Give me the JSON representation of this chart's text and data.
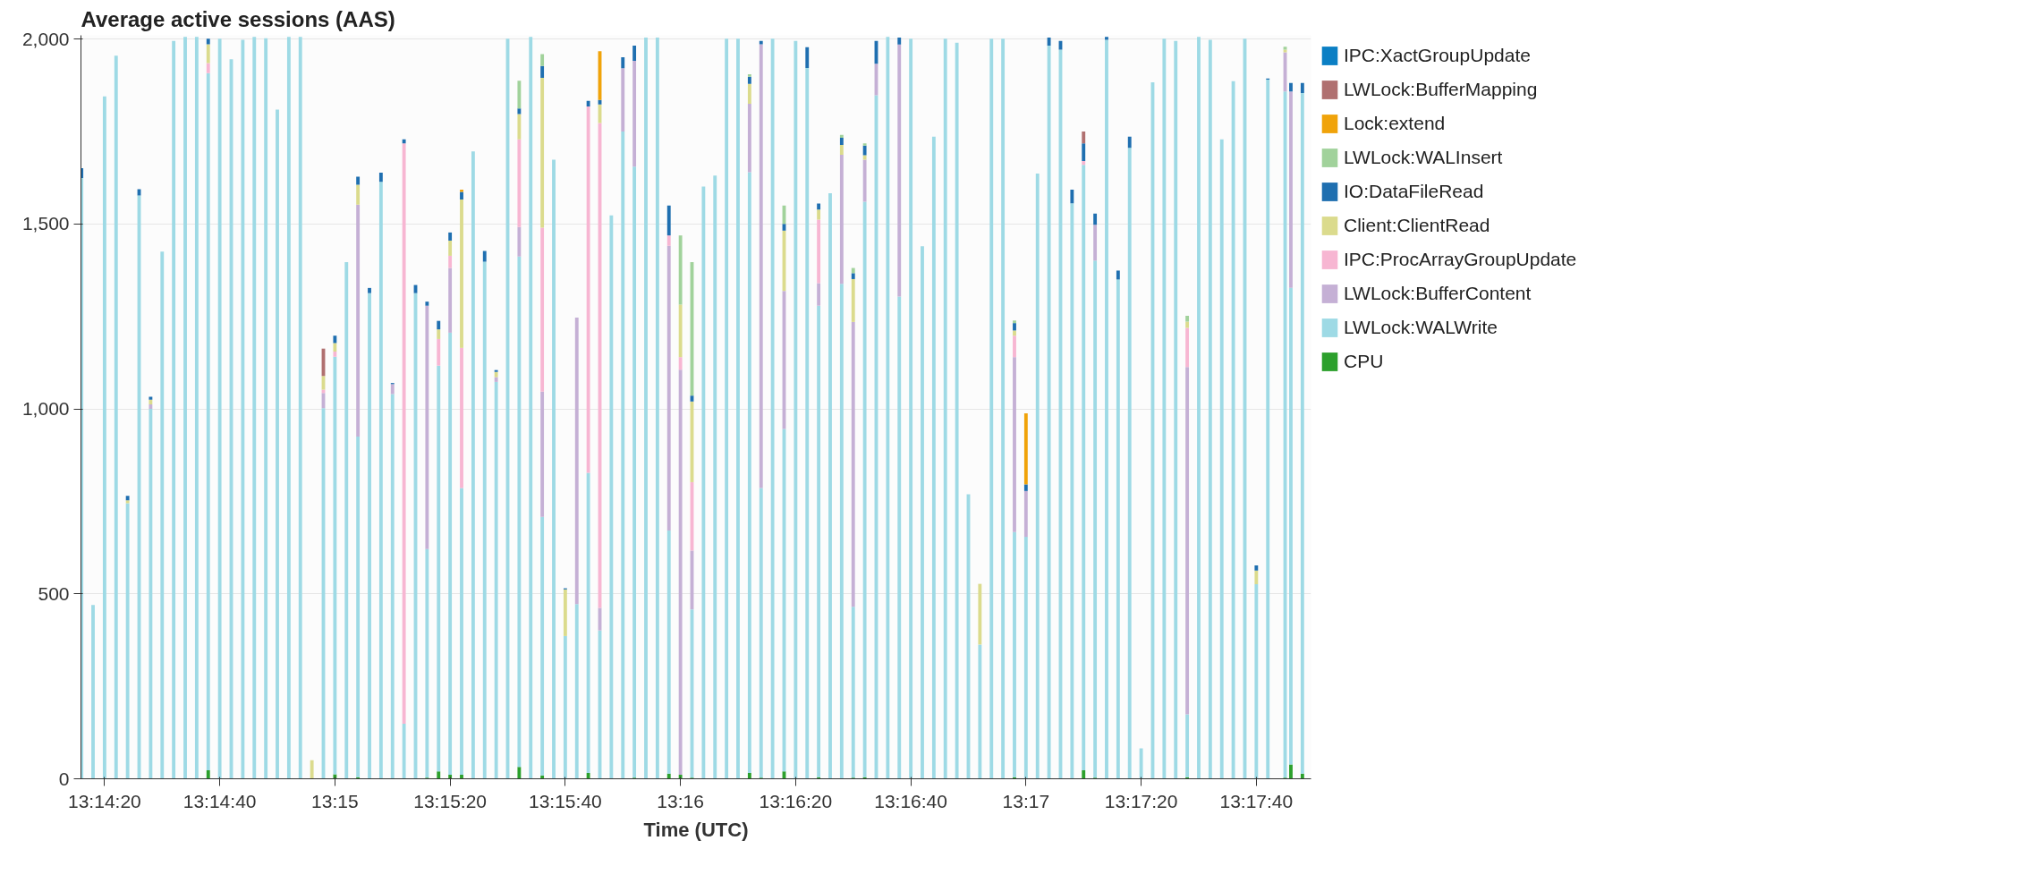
{
  "chart_data": {
    "type": "bar",
    "stacked": true,
    "title": "Average active sessions (AAS)",
    "xlabel": "Time (UTC)",
    "x": [
      13.237778,
      13.238333,
      13.238889,
      13.239444,
      13.24,
      13.240556,
      13.241111,
      13.241667,
      13.242222,
      13.242778,
      13.243333,
      13.243889,
      13.244444,
      13.245,
      13.245556,
      13.246111,
      13.246667,
      13.247222,
      13.247778,
      13.248333,
      13.248889,
      13.249444,
      13.25,
      13.250556,
      13.251111,
      13.251667,
      13.252222,
      13.252778,
      13.253333,
      13.253889,
      13.254444,
      13.255,
      13.255556,
      13.256111,
      13.256667,
      13.257222,
      13.257778,
      13.258333,
      13.258889,
      13.259444,
      13.26,
      13.260556,
      13.261111,
      13.261667,
      13.262222,
      13.262778,
      13.263333,
      13.263889,
      13.264444,
      13.265,
      13.265556,
      13.266111,
      13.266667,
      13.267222,
      13.267778,
      13.268333,
      13.268889,
      13.269444,
      13.27,
      13.270556,
      13.271111,
      13.271667,
      13.272222,
      13.272778,
      13.273333,
      13.273889,
      13.274444,
      13.275,
      13.275556,
      13.276111,
      13.276667,
      13.277222,
      13.277778,
      13.278333,
      13.278889,
      13.279444,
      13.28,
      13.280556,
      13.281111,
      13.281667,
      13.282222,
      13.282778,
      13.283333,
      13.283889,
      13.284444,
      13.285,
      13.285556,
      13.286111,
      13.286667,
      13.287222,
      13.287778,
      13.288333,
      13.288889,
      13.289444,
      13.29,
      13.290556,
      13.291111,
      13.291667,
      13.292222,
      13.292778,
      13.293333,
      13.293889,
      13.294444,
      13.295,
      13.295833,
      13.296111,
      13.296667
    ],
    "xlim": [
      13.23775,
      13.297083
    ],
    "xticks": [
      {
        "value": 13.238889,
        "label": "13:14:20"
      },
      {
        "value": 13.244444,
        "label": "13:14:40"
      },
      {
        "value": 13.25,
        "label": "13:15"
      },
      {
        "value": 13.255556,
        "label": "13:15:20"
      },
      {
        "value": 13.261111,
        "label": "13:15:40"
      },
      {
        "value": 13.266667,
        "label": "13:16"
      },
      {
        "value": 13.272222,
        "label": "13:16:20"
      },
      {
        "value": 13.277778,
        "label": "13:16:40"
      },
      {
        "value": 13.283333,
        "label": "13:17"
      },
      {
        "value": 13.288889,
        "label": "13:17:20"
      },
      {
        "value": 13.294444,
        "label": "13:17:40"
      }
    ],
    "ylim": [
      0,
      2010
    ],
    "yticks": [
      0,
      500,
      {
        "value": 1000,
        "label": "1,000"
      },
      {
        "value": 1500,
        "label": "1,500"
      },
      {
        "value": 2000,
        "label": "2,000"
      }
    ],
    "grid": "y",
    "legend": "right",
    "series": [
      {
        "name": "CPU",
        "color": "#2ca02c",
        "values": [
          0,
          0,
          0,
          0,
          0,
          0,
          0,
          0,
          0,
          0,
          0,
          23,
          0,
          0,
          0,
          0,
          0,
          0,
          0,
          0,
          0,
          null,
          12,
          0,
          4,
          0,
          0,
          0,
          0,
          0,
          3,
          20,
          11,
          11,
          0,
          0,
          0,
          0,
          32,
          0,
          9,
          0,
          0,
          0,
          16,
          null,
          0,
          0,
          3,
          0,
          0,
          14,
          11,
          3,
          0,
          0,
          0,
          0,
          16,
          3,
          0,
          20,
          0,
          0,
          4,
          0,
          0,
          3,
          4,
          0,
          0,
          0,
          0,
          0,
          0,
          0,
          0,
          0,
          0,
          0,
          0,
          4,
          null,
          0,
          0,
          0,
          0,
          23,
          3,
          0,
          0,
          0,
          0,
          0,
          0,
          0,
          4,
          0,
          0,
          0,
          0,
          0,
          0,
          0,
          3,
          39,
          14
        ]
      },
      {
        "name": "LWLock:WALWrite",
        "color": "#9edae5",
        "values": [
          1624,
          470,
          1845,
          1955,
          745,
          1577,
          1000,
          1425,
          1995,
          2006,
          2006,
          1885,
          2001,
          1945,
          1998,
          2006,
          2002,
          1809,
          2006,
          2006,
          0,
          1002,
          1129,
          1397,
          921,
          1313,
          1614,
          1040,
          149,
          1313,
          618,
          1097,
          1195,
          775,
          1696,
          1398,
          1073,
          2001,
          1380,
          2006,
          699,
          1674,
          386,
          472,
          811,
          401,
          1523,
          1750,
          1652,
          2004,
          2004,
          657,
          0,
          455,
          1601,
          1631,
          2001,
          2001,
          1624,
          783,
          2001,
          926,
          1995,
          1922,
          1275,
          1583,
          1338,
          462,
          1556,
          1848,
          2006,
          1304,
          2001,
          1440,
          1736,
          2001,
          1990,
          769,
          363,
          2001,
          2001,
          663,
          654,
          1636,
          1982,
          1971,
          1556,
          1637,
          1398,
          1998,
          1350,
          1706,
          82,
          1883,
          2001,
          1995,
          170,
          2006,
          1998,
          1729,
          1886,
          2001,
          526,
          1890,
          1855,
          1288,
          1840
        ]
      },
      {
        "name": "LWLock:BufferContent",
        "color": "#c5b0d5",
        "values": [
          0,
          0,
          0,
          0,
          0,
          0,
          12,
          0,
          0,
          0,
          0,
          0,
          0,
          0,
          0,
          0,
          0,
          0,
          0,
          0,
          0,
          41,
          0,
          0,
          627,
          0,
          0,
          27,
          0,
          0,
          658,
          0,
          175,
          0,
          0,
          0,
          13,
          0,
          80,
          0,
          339,
          0,
          0,
          775,
          0,
          61,
          0,
          171,
          286,
          0,
          0,
          770,
          1095,
          159,
          0,
          0,
          0,
          0,
          185,
          1200,
          0,
          373,
          0,
          0,
          61,
          0,
          349,
          770,
          114,
          85,
          0,
          681,
          0,
          0,
          0,
          0,
          0,
          0,
          0,
          0,
          0,
          473,
          124,
          0,
          0,
          0,
          0,
          0,
          97,
          0,
          0,
          0,
          0,
          0,
          0,
          0,
          939,
          0,
          0,
          0,
          0,
          0,
          0,
          0,
          106,
          531,
          0
        ]
      },
      {
        "name": "IPC:ProcArrayGroupUpdate",
        "color": "#f7b6d2",
        "values": [
          0,
          0,
          0,
          0,
          0,
          0,
          0,
          0,
          0,
          0,
          0,
          27,
          0,
          0,
          0,
          0,
          0,
          0,
          0,
          0,
          0,
          9,
          14,
          0,
          0,
          0,
          0,
          0,
          1569,
          0,
          0,
          72,
          33,
          379,
          0,
          0,
          0,
          0,
          237,
          0,
          443,
          0,
          0,
          0,
          991,
          1311,
          0,
          0,
          0,
          0,
          0,
          28,
          34,
          185,
          0,
          0,
          0,
          0,
          0,
          0,
          0,
          0,
          0,
          0,
          172,
          0,
          0,
          0,
          0,
          0,
          0,
          0,
          0,
          0,
          0,
          0,
          0,
          0,
          0,
          0,
          0,
          58,
          0,
          0,
          0,
          0,
          0,
          10,
          0,
          0,
          0,
          0,
          0,
          0,
          0,
          0,
          106,
          0,
          0,
          0,
          0,
          0,
          0,
          0,
          0,
          0,
          0
        ]
      },
      {
        "name": "Client:ClientRead",
        "color": "#dbdb8d",
        "values": [
          0,
          0,
          0,
          0,
          8,
          0,
          13,
          0,
          0,
          0,
          0,
          51,
          0,
          0,
          0,
          0,
          0,
          0,
          0,
          0,
          50,
          37,
          23,
          0,
          54,
          0,
          0,
          0,
          0,
          0,
          0,
          26,
          41,
          401,
          0,
          0,
          14,
          0,
          68,
          0,
          405,
          0,
          126,
          0,
          0,
          50,
          0,
          0,
          0,
          0,
          0,
          0,
          142,
          218,
          0,
          0,
          0,
          0,
          54,
          0,
          0,
          163,
          0,
          0,
          27,
          0,
          27,
          116,
          12,
          null,
          0,
          0,
          0,
          0,
          0,
          0,
          0,
          0,
          164,
          0,
          0,
          14,
          0,
          0,
          0,
          0,
          0,
          0,
          0,
          0,
          0,
          0,
          0,
          0,
          0,
          0,
          17,
          0,
          0,
          0,
          0,
          0,
          37,
          0,
          7,
          0,
          0
        ]
      },
      {
        "name": "IO:DataFileRead",
        "color": "#1f6fb0",
        "values": [
          27,
          0,
          0,
          0,
          12,
          17,
          8,
          0,
          0,
          0,
          0,
          15,
          0,
          0,
          0,
          0,
          0,
          0,
          0,
          0,
          0,
          0,
          20,
          0,
          22,
          14,
          25,
          3,
          11,
          22,
          11,
          23,
          22,
          21,
          0,
          29,
          5,
          0,
          15,
          0,
          32,
          0,
          3,
          0,
          15,
          12,
          0,
          30,
          41,
          0,
          0,
          81,
          0,
          16,
          0,
          0,
          0,
          0,
          19,
          9,
          0,
          18,
          0,
          56,
          16,
          0,
          19,
          16,
          26,
          62,
          0,
          19,
          0,
          0,
          0,
          0,
          0,
          0,
          0,
          0,
          0,
          20,
          18,
          0,
          22,
          24,
          37,
          48,
          30,
          8,
          24,
          30,
          0,
          0,
          0,
          0,
          0,
          0,
          0,
          0,
          0,
          0,
          14,
          3,
          0,
          23,
          27
        ]
      },
      {
        "name": "LWLock:WALInsert",
        "color": "#a1d29b",
        "values": [
          0,
          0,
          0,
          0,
          0,
          0,
          0,
          0,
          0,
          0,
          0,
          0,
          0,
          0,
          0,
          0,
          0,
          0,
          0,
          0,
          0,
          0,
          0,
          0,
          0,
          0,
          0,
          0,
          0,
          0,
          0,
          0,
          0,
          0,
          0,
          0,
          0,
          0,
          75,
          0,
          32,
          0,
          0,
          0,
          0,
          0,
          0,
          0,
          0,
          0,
          0,
          0,
          187,
          361,
          0,
          0,
          0,
          0,
          7,
          0,
          0,
          50,
          0,
          0,
          0,
          0,
          8,
          14,
          6,
          0,
          0,
          0,
          0,
          0,
          0,
          0,
          0,
          0,
          0,
          0,
          0,
          7,
          0,
          0,
          0,
          0,
          0,
          0,
          0,
          0,
          0,
          0,
          0,
          0,
          0,
          0,
          16,
          0,
          0,
          0,
          0,
          0,
          0,
          0,
          8,
          0,
          0
        ]
      },
      {
        "name": "Lock:extend",
        "color": "#f0a30a",
        "values": [
          0,
          0,
          0,
          0,
          0,
          0,
          0,
          0,
          0,
          0,
          0,
          0,
          0,
          0,
          0,
          0,
          0,
          0,
          0,
          0,
          0,
          0,
          0,
          0,
          0,
          0,
          0,
          0,
          0,
          0,
          0,
          0,
          0,
          6,
          0,
          0,
          0,
          0,
          0,
          0,
          0,
          0,
          0,
          0,
          0,
          132,
          0,
          0,
          0,
          0,
          0,
          0,
          0,
          0,
          0,
          0,
          0,
          0,
          0,
          0,
          0,
          0,
          0,
          0,
          0,
          0,
          0,
          0,
          0,
          0,
          0,
          0,
          0,
          0,
          0,
          0,
          0,
          0,
          0,
          0,
          0,
          0,
          192,
          0,
          0,
          0,
          0,
          0,
          0,
          0,
          0,
          0,
          0,
          0,
          0,
          0,
          0,
          0,
          0,
          0,
          0,
          0,
          0,
          0,
          0,
          0,
          0
        ]
      },
      {
        "name": "LWLock:BufferMapping",
        "color": "#b07070",
        "values": [
          0,
          0,
          0,
          0,
          0,
          0,
          0,
          0,
          0,
          0,
          0,
          0,
          0,
          0,
          0,
          0,
          0,
          0,
          0,
          0,
          0,
          74,
          0,
          0,
          0,
          0,
          0,
          0,
          0,
          0,
          0,
          0,
          0,
          0,
          0,
          0,
          0,
          0,
          0,
          0,
          0,
          0,
          0,
          0,
          0,
          0,
          0,
          0,
          0,
          0,
          0,
          0,
          0,
          0,
          0,
          0,
          0,
          0,
          0,
          0,
          0,
          0,
          0,
          0,
          0,
          0,
          0,
          0,
          0,
          0,
          0,
          0,
          0,
          0,
          0,
          0,
          0,
          0,
          0,
          0,
          0,
          0,
          0,
          0,
          0,
          0,
          0,
          32,
          0,
          0,
          0,
          0,
          0,
          0,
          0,
          0,
          0,
          0,
          0,
          0,
          0,
          0,
          0,
          0,
          0,
          0,
          0
        ]
      },
      {
        "name": "IPC:XactGroupUpdate",
        "color": "#0b7fc4",
        "values": [
          0,
          0,
          0,
          0,
          0,
          0,
          0,
          0,
          0,
          0,
          0,
          0,
          0,
          0,
          0,
          0,
          0,
          0,
          0,
          0,
          0,
          0,
          0,
          0,
          0,
          0,
          0,
          0,
          0,
          0,
          0,
          0,
          0,
          0,
          0,
          0,
          0,
          0,
          0,
          0,
          0,
          0,
          0,
          0,
          0,
          0,
          0,
          0,
          0,
          0,
          0,
          0,
          0,
          0,
          0,
          0,
          0,
          0,
          0,
          0,
          0,
          0,
          0,
          0,
          0,
          0,
          0,
          0,
          0,
          0,
          0,
          0,
          0,
          0,
          0,
          0,
          0,
          0,
          0,
          0,
          0,
          0,
          0,
          0,
          0,
          0,
          0,
          0,
          0,
          0,
          0,
          0,
          0,
          0,
          0,
          0,
          0,
          0,
          0,
          0,
          0,
          0,
          0,
          0,
          0,
          0,
          0
        ]
      }
    ]
  }
}
